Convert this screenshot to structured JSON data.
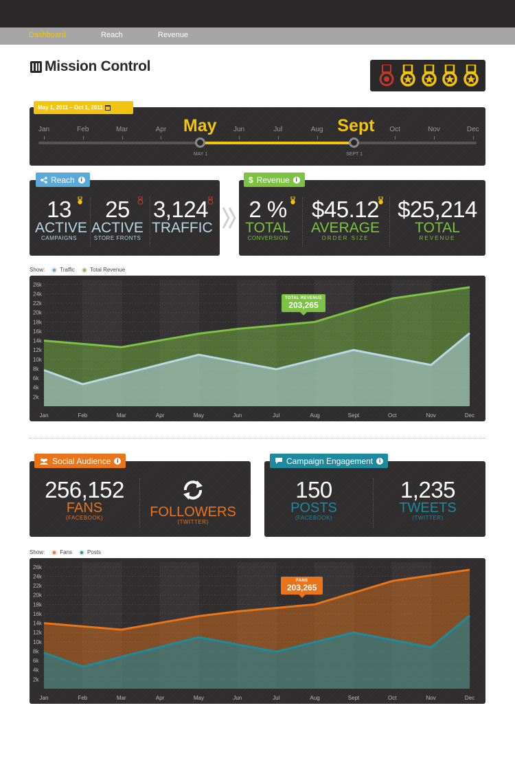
{
  "nav": {
    "items": [
      "Dashboard",
      "Reach",
      "Revenue"
    ]
  },
  "header": {
    "title": "Mission Control"
  },
  "timeline": {
    "date_range": "May 1, 2011  –  Oct 1, 2011",
    "months": [
      "Jan",
      "Feb",
      "Mar",
      "Apr",
      "May",
      "Jun",
      "Jul",
      "Aug",
      "Sept",
      "Oct",
      "Nov",
      "Dec"
    ],
    "start_month": "May",
    "end_month": "Sept",
    "start_label": "MAY 1",
    "end_label": "SEPT 1"
  },
  "reach": {
    "tag": "Reach",
    "stats": [
      {
        "value": "13",
        "label": "ACTIVE",
        "sub": "CAMPAIGNS"
      },
      {
        "value": "25",
        "label": "ACTIVE",
        "sub": "STORE FRONTS"
      },
      {
        "value": "3,124",
        "label": "TRAFFIC",
        "sub": ""
      }
    ]
  },
  "revenue": {
    "tag": "Revenue",
    "symbol": "$",
    "stats": [
      {
        "value": "2 %",
        "label": "TOTAL",
        "sub": "CONVERSION"
      },
      {
        "value": "$45.12",
        "label": "AVERAGE",
        "sub": "ORDER SIZE"
      },
      {
        "value": "$25,214",
        "label": "TOTAL",
        "sub": "REVENUE"
      }
    ]
  },
  "chart1": {
    "show_label": "Show:",
    "legend": [
      "Traffic",
      "Total Revenue"
    ],
    "callout_title": "TOTAL REVENUE",
    "callout_value": "203,265"
  },
  "social": {
    "tag": "Social Audience",
    "fans": {
      "value": "256,152",
      "label": "FANS",
      "sub": "(FACEBOOK)"
    },
    "followers": {
      "label": "FOLLOWERS",
      "sub": "(TWITTER)"
    }
  },
  "engagement": {
    "tag": "Campaign Engagement",
    "posts": {
      "value": "150",
      "label": "POSTS",
      "sub": "(FACEBOOK)"
    },
    "tweets": {
      "value": "1,235",
      "label": "TWEETS",
      "sub": "(TWITTER)"
    }
  },
  "chart2": {
    "show_label": "Show:",
    "legend": [
      "Fans",
      "Posts"
    ],
    "callout_title": "FANS",
    "callout_value": "203,265"
  },
  "colors": {
    "yellow": "#f1c40f",
    "blue": "#5aa9d6",
    "green": "#7dc242",
    "orange": "#e8751a",
    "teal": "#1e8a9e",
    "dark": "#2e2c2d"
  },
  "chart_data": [
    {
      "type": "area",
      "categories": [
        "Jan",
        "Feb",
        "Mar",
        "Apr",
        "May",
        "Jun",
        "Jul",
        "Aug",
        "Sept",
        "Oct",
        "Nov",
        "Dec"
      ],
      "yticks": [
        "2k",
        "4k",
        "6k",
        "8k",
        "10k",
        "12k",
        "14k",
        "16k",
        "18k",
        "20k",
        "22k",
        "24k",
        "26k"
      ],
      "ylim": [
        0,
        27000
      ],
      "series": [
        {
          "name": "Total Revenue",
          "values": [
            14000,
            null,
            12600,
            null,
            15500,
            16500,
            null,
            18000,
            null,
            23000,
            null,
            25400
          ]
        },
        {
          "name": "Traffic",
          "values": [
            7700,
            4700,
            null,
            null,
            11000,
            null,
            7900,
            null,
            12000,
            null,
            8800,
            15600
          ]
        }
      ],
      "colors": [
        "#7dc242",
        "#b8d8e6"
      ]
    },
    {
      "type": "area",
      "categories": [
        "Jan",
        "Feb",
        "Mar",
        "Apr",
        "May",
        "Jun",
        "Jul",
        "Aug",
        "Sept",
        "Oct",
        "Nov",
        "Dec"
      ],
      "yticks": [
        "2k",
        "4k",
        "6k",
        "8k",
        "10k",
        "12k",
        "14k",
        "16k",
        "18k",
        "20k",
        "22k",
        "24k",
        "26k"
      ],
      "ylim": [
        0,
        27000
      ],
      "series": [
        {
          "name": "Fans",
          "values": [
            14000,
            null,
            12600,
            null,
            15500,
            16500,
            null,
            18000,
            null,
            23000,
            null,
            25400
          ]
        },
        {
          "name": "Posts",
          "values": [
            7700,
            4700,
            null,
            null,
            11000,
            null,
            7900,
            null,
            12000,
            null,
            8800,
            15600
          ]
        }
      ],
      "colors": [
        "#e8751a",
        "#1e8a9e"
      ]
    }
  ]
}
